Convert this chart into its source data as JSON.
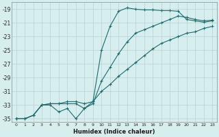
{
  "xlabel": "Humidex (Indice chaleur)",
  "ylabel": "",
  "background_color": "#d6eeee",
  "grid_color": "#b8d0d0",
  "line_color": "#1a6b6b",
  "xlim": [
    -0.5,
    23.5
  ],
  "ylim": [
    -35.5,
    -18.0
  ],
  "yticks": [
    -19,
    -21,
    -23,
    -25,
    -27,
    -29,
    -31,
    -33,
    -35
  ],
  "xticks": [
    0,
    1,
    2,
    3,
    4,
    5,
    6,
    7,
    8,
    9,
    10,
    11,
    12,
    13,
    14,
    15,
    16,
    17,
    18,
    19,
    20,
    21,
    22,
    23
  ],
  "line1_x": [
    0,
    1,
    2,
    3,
    4,
    5,
    6,
    7,
    8,
    9,
    10,
    11,
    12,
    13,
    14,
    15,
    16,
    17,
    18,
    19,
    20,
    21,
    22,
    23
  ],
  "line1_y": [
    -35,
    -35,
    -34.5,
    -33,
    -33,
    -34,
    -33.5,
    -35,
    -33.5,
    -32.5,
    -25,
    -21.5,
    -19.3,
    -18.8,
    -19.0,
    -19.1,
    -19.1,
    -19.2,
    -19.2,
    -19.3,
    -20.5,
    -20.7,
    -20.9,
    -20.7
  ],
  "line2_x": [
    0,
    1,
    2,
    3,
    4,
    5,
    6,
    7,
    8,
    9,
    10,
    11,
    12,
    13,
    14,
    15,
    16,
    17,
    18,
    19,
    20,
    21,
    22,
    23
  ],
  "line2_y": [
    -35,
    -35,
    -34.5,
    -33,
    -32.8,
    -32.8,
    -32.8,
    -32.8,
    -33.5,
    -32.8,
    -29.5,
    -27.5,
    -25.5,
    -23.8,
    -22.5,
    -22.0,
    -21.5,
    -21.0,
    -20.5,
    -20.0,
    -20.2,
    -20.5,
    -20.7,
    -20.6
  ],
  "line3_x": [
    0,
    1,
    2,
    3,
    4,
    5,
    6,
    7,
    8,
    9,
    10,
    11,
    12,
    13,
    14,
    15,
    16,
    17,
    18,
    19,
    20,
    21,
    22,
    23
  ],
  "line3_y": [
    -35,
    -35,
    -34.5,
    -33,
    -32.8,
    -32.8,
    -32.5,
    -32.5,
    -32.8,
    -32.5,
    -31.0,
    -30.0,
    -28.8,
    -27.8,
    -26.8,
    -25.8,
    -24.8,
    -24.0,
    -23.5,
    -23.0,
    -22.5,
    -22.3,
    -21.8,
    -21.5
  ]
}
